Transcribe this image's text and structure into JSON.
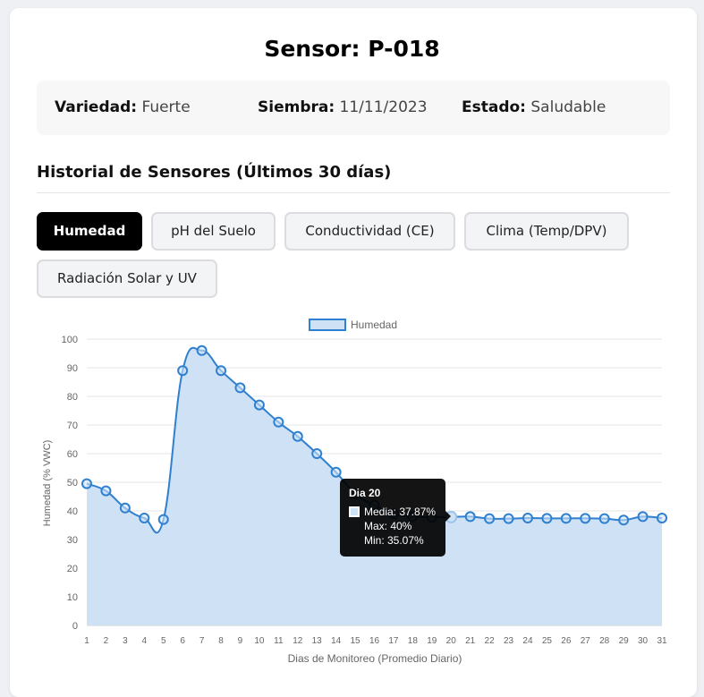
{
  "header": {
    "title": "Sensor: P-018"
  },
  "info": {
    "variedad_label": "Variedad:",
    "variedad_value": "Fuerte",
    "siembra_label": "Siembra:",
    "siembra_value": "11/11/2023",
    "estado_label": "Estado:",
    "estado_value": "Saludable"
  },
  "section_title": "Historial de Sensores (Últimos 30 días)",
  "tabs": [
    {
      "label": "Humedad",
      "active": true
    },
    {
      "label": "pH del Suelo",
      "active": false
    },
    {
      "label": "Conductividad (CE)",
      "active": false
    },
    {
      "label": "Clima (Temp/DPV)",
      "active": false
    },
    {
      "label": "Radiación Solar y UV",
      "active": false
    }
  ],
  "colors": {
    "line": "#2f80d0",
    "fill": "#cfe2f5",
    "tab_active": "#000000"
  },
  "chart_data": {
    "type": "area",
    "x": [
      1,
      2,
      3,
      4,
      5,
      6,
      7,
      8,
      9,
      10,
      11,
      12,
      13,
      14,
      15,
      16,
      17,
      18,
      19,
      20,
      21,
      22,
      23,
      24,
      25,
      26,
      27,
      28,
      29,
      30,
      31
    ],
    "series": [
      {
        "name": "Humedad",
        "values": [
          49.5,
          47,
          41,
          37.5,
          37,
          89,
          96,
          89,
          83,
          77,
          71,
          66,
          60,
          53.5,
          46,
          42,
          39,
          38,
          37.8,
          37.87,
          38,
          37.3,
          37.3,
          37.5,
          37.4,
          37.4,
          37.4,
          37.3,
          36.8,
          38,
          37.5
        ]
      }
    ],
    "xlabel": "Dias de Monitoreo (Promedio Diario)",
    "ylabel": "Humedad (% VWC)",
    "ylim": [
      0,
      100
    ],
    "yticks": [
      0,
      10,
      20,
      30,
      40,
      50,
      60,
      70,
      80,
      90,
      100
    ],
    "grid": true,
    "legend": "top-center",
    "tooltip": {
      "title": "Dia 20",
      "media": "Media: 37.87%",
      "max": "Max: 40%",
      "min": "Min: 35.07%",
      "index": 19
    }
  }
}
